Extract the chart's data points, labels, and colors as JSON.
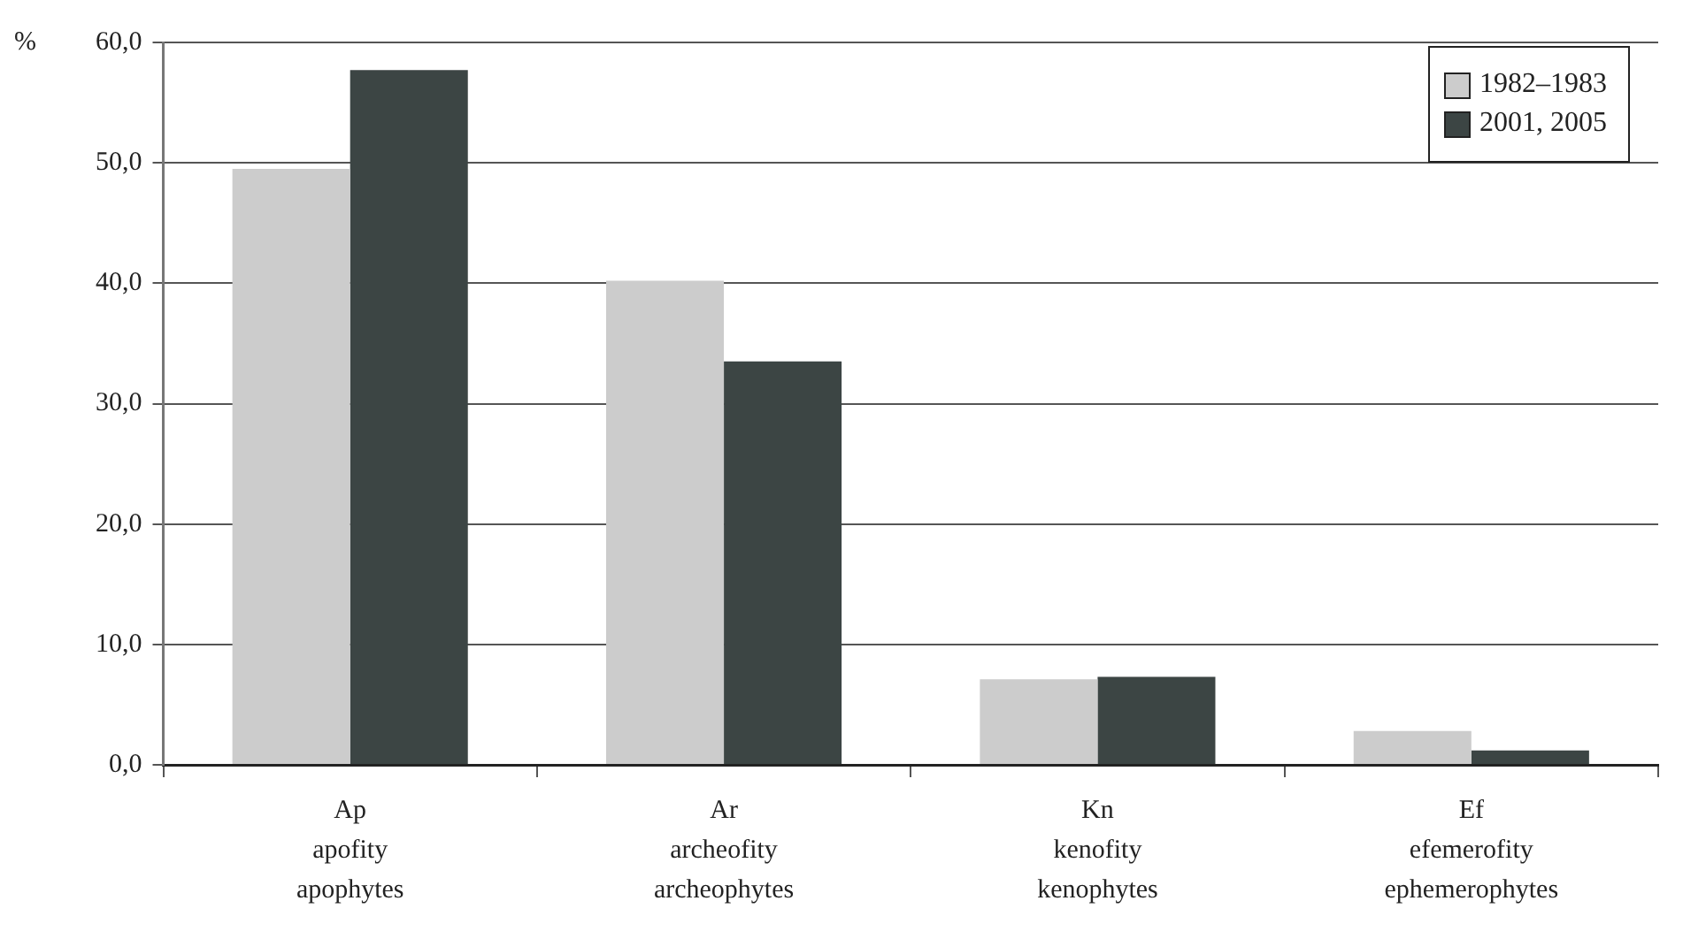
{
  "chart_data": {
    "type": "bar",
    "ylabel": "%",
    "categories": [
      "Ap\napofity\napophytes",
      "Ar\narcheofity\narcheophytes",
      "Kn\nkenofity\nkenophytes",
      "Ef\nefemerofity\nephemerophytes"
    ],
    "series": [
      {
        "name": "1982–1983",
        "color": "#cccccc",
        "values": [
          49.5,
          40.2,
          7.1,
          2.8
        ]
      },
      {
        "name": "2001, 2005",
        "color": "#3c4544",
        "values": [
          57.7,
          33.5,
          7.3,
          1.2
        ]
      }
    ],
    "ylim": [
      0,
      60
    ],
    "yticks": [
      {
        "value": 0,
        "label": "0,0"
      },
      {
        "value": 10,
        "label": "10,0"
      },
      {
        "value": 20,
        "label": "20,0"
      },
      {
        "value": 30,
        "label": "30,0"
      },
      {
        "value": 40,
        "label": "40,0"
      },
      {
        "value": 50,
        "label": "50,0"
      },
      {
        "value": 60,
        "label": "60,0"
      }
    ],
    "grid": "y",
    "legend": "top right"
  }
}
